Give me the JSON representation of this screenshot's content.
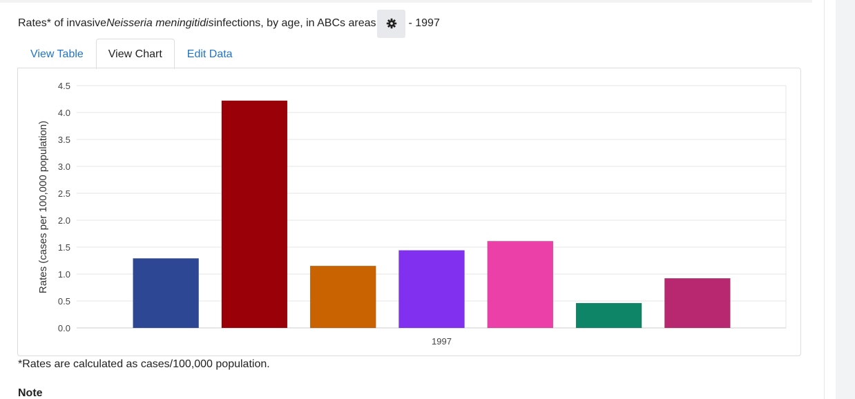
{
  "title": {
    "prefix": "Rates* of invasive ",
    "italic": "Neisseria meningitidis",
    "middle": " infections, by age, in ABCs areas",
    "suffix": "- 1997",
    "settings_icon": "gear-icon"
  },
  "tabs": [
    {
      "label": "View Table",
      "active": false
    },
    {
      "label": "View Chart",
      "active": true
    },
    {
      "label": "Edit Data",
      "active": false
    }
  ],
  "chart_data": {
    "type": "bar",
    "categories": [
      "1997"
    ],
    "series": [
      {
        "values": [
          1.29
        ],
        "color": "#2e4795"
      },
      {
        "values": [
          4.22
        ],
        "color": "#990008"
      },
      {
        "values": [
          1.15
        ],
        "color": "#c96200"
      },
      {
        "values": [
          1.44
        ],
        "color": "#8230f0"
      },
      {
        "values": [
          1.61
        ],
        "color": "#ea40a8"
      },
      {
        "values": [
          0.46
        ],
        "color": "#0e8566"
      },
      {
        "values": [
          0.92
        ],
        "color": "#b82870"
      }
    ],
    "ylabel": "Rates (cases per 100,000 population)",
    "xlabel": "",
    "ylim": [
      0,
      4.5
    ],
    "yticks": [
      "0.0",
      "0.5",
      "1.0",
      "1.5",
      "2.0",
      "2.5",
      "3.0",
      "3.5",
      "4.0",
      "4.5"
    ],
    "grid": true,
    "legend": "none"
  },
  "footnote": "*Rates are calculated as cases/100,000 population.",
  "note_heading": "Note"
}
